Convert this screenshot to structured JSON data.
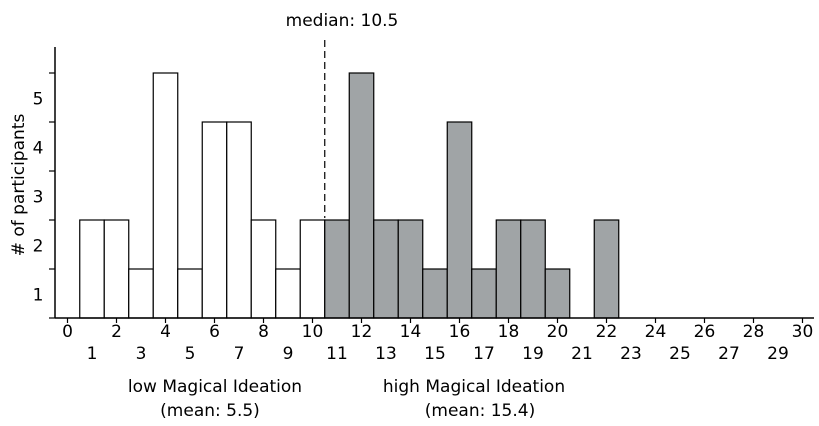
{
  "chart_data": {
    "type": "bar",
    "ylabel": "# of participants",
    "yticks": [
      1,
      2,
      3,
      4,
      5
    ],
    "xticks_even": [
      "0",
      "2",
      "4",
      "6",
      "8",
      "10",
      "12",
      "14",
      "16",
      "18",
      "20",
      "22",
      "24",
      "26",
      "28",
      "30"
    ],
    "xticks_odd": [
      "1",
      "3",
      "5",
      "7",
      "9",
      "11",
      "13",
      "15",
      "17",
      "19",
      "21",
      "23",
      "25",
      "27",
      "29"
    ],
    "x_range": [
      0,
      30
    ],
    "y_range": [
      0,
      5
    ],
    "bars": [
      {
        "bin": 1,
        "value": 2,
        "group": "low"
      },
      {
        "bin": 2,
        "value": 2,
        "group": "low"
      },
      {
        "bin": 3,
        "value": 1,
        "group": "low"
      },
      {
        "bin": 4,
        "value": 5,
        "group": "low"
      },
      {
        "bin": 5,
        "value": 1,
        "group": "low"
      },
      {
        "bin": 6,
        "value": 4,
        "group": "low"
      },
      {
        "bin": 7,
        "value": 4,
        "group": "low"
      },
      {
        "bin": 8,
        "value": 2,
        "group": "low"
      },
      {
        "bin": 9,
        "value": 1,
        "group": "low"
      },
      {
        "bin": 10,
        "value": 2,
        "group": "low"
      },
      {
        "bin": 11,
        "value": 2,
        "group": "high"
      },
      {
        "bin": 12,
        "value": 5,
        "group": "high"
      },
      {
        "bin": 13,
        "value": 2,
        "group": "high"
      },
      {
        "bin": 14,
        "value": 2,
        "group": "high"
      },
      {
        "bin": 15,
        "value": 1,
        "group": "high"
      },
      {
        "bin": 16,
        "value": 4,
        "group": "high"
      },
      {
        "bin": 17,
        "value": 1,
        "group": "high"
      },
      {
        "bin": 18,
        "value": 2,
        "group": "high"
      },
      {
        "bin": 19,
        "value": 2,
        "group": "high"
      },
      {
        "bin": 20,
        "value": 1,
        "group": "high"
      },
      {
        "bin": 22,
        "value": 2,
        "group": "high"
      }
    ],
    "median": {
      "value": 10.5,
      "label": "median: 10.5"
    },
    "groups": [
      {
        "key": "low",
        "name": "low Magical Ideation",
        "mean_label": "(mean: 5.5)",
        "color": "#ffffff"
      },
      {
        "key": "high",
        "name": "high Magical Ideation",
        "mean_label": "(mean: 15.4)",
        "color": "#a0a4a6"
      }
    ]
  }
}
